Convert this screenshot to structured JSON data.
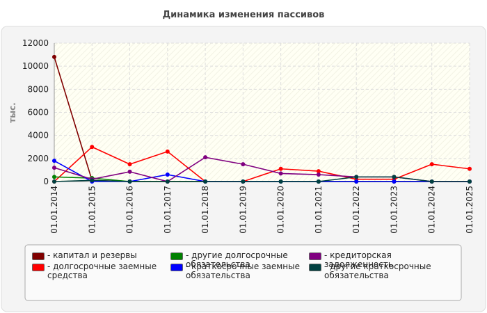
{
  "chart_data": {
    "type": "line",
    "title": "Динамика изменения пассивов",
    "y_label": "тыс.",
    "categories": [
      "01.01.2014",
      "01.01.2015",
      "01.01.2016",
      "01.01.2017",
      "01.01.2018",
      "01.01.2019",
      "01.01.2020",
      "01.01.2021",
      "01.01.2022",
      "01.01.2023",
      "01.01.2024",
      "01.01.2025"
    ],
    "ylim": [
      0,
      12000
    ],
    "yticks": [
      0,
      2000,
      4000,
      6000,
      8000,
      10000,
      12000
    ],
    "grid": true,
    "series": [
      {
        "name": "- капитал и резервы",
        "color": "#800000",
        "values": [
          10800,
          100,
          0,
          0,
          0,
          0,
          0,
          0,
          0,
          0,
          0,
          0
        ]
      },
      {
        "name": "- долгосрочные заемные средства",
        "color": "#ff0000",
        "values": [
          0,
          3000,
          1500,
          2600,
          0,
          0,
          1100,
          900,
          200,
          200,
          1500,
          1100
        ]
      },
      {
        "name": "- другие долгосрочные обязательства",
        "color": "#008000",
        "values": [
          400,
          300,
          0,
          0,
          0,
          0,
          0,
          0,
          0,
          0,
          0,
          0
        ]
      },
      {
        "name": "- краткосрочные заемные обязательства",
        "color": "#0000ff",
        "values": [
          1800,
          0,
          0,
          600,
          0,
          0,
          0,
          0,
          0,
          0,
          0,
          0
        ]
      },
      {
        "name": "- кредиторская задолженность",
        "color": "#800080",
        "values": [
          1200,
          200,
          850,
          0,
          2100,
          1500,
          700,
          600,
          400,
          400,
          0,
          0
        ]
      },
      {
        "name": "- другие краткосрочные обязательства",
        "color": "#004040",
        "values": [
          0,
          100,
          0,
          0,
          0,
          0,
          0,
          0,
          400,
          400,
          0,
          0
        ]
      }
    ]
  }
}
